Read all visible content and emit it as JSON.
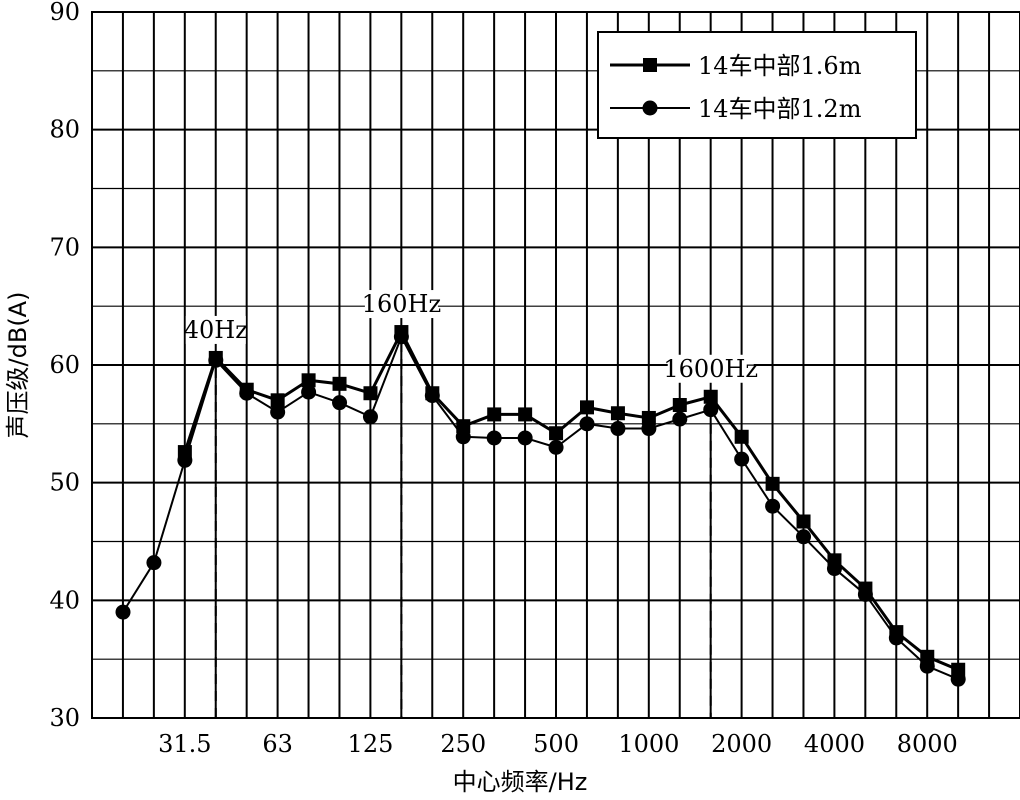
{
  "chart_data": {
    "type": "line",
    "xlabel": "中心频率/Hz",
    "ylabel": "声压级/dB(A)",
    "ylim": [
      30,
      90
    ],
    "yticks": [
      30,
      40,
      50,
      60,
      70,
      80,
      90
    ],
    "x_bands": [
      "20",
      "25",
      "31.5",
      "40",
      "50",
      "63",
      "80",
      "100",
      "125",
      "160",
      "200",
      "250",
      "315",
      "400",
      "500",
      "630",
      "800",
      "1000",
      "1250",
      "1600",
      "2000",
      "2500",
      "3150",
      "4000",
      "5000",
      "6300",
      "8000",
      "10000"
    ],
    "x_tick_labels": [
      {
        "band": "31.5",
        "label": "31.5"
      },
      {
        "band": "63",
        "label": "63"
      },
      {
        "band": "125",
        "label": "125"
      },
      {
        "band": "250",
        "label": "250"
      },
      {
        "band": "500",
        "label": "500"
      },
      {
        "band": "1000",
        "label": "1000"
      },
      {
        "band": "2000",
        "label": "2000"
      },
      {
        "band": "4000",
        "label": "4000"
      },
      {
        "band": "8000",
        "label": "8000"
      }
    ],
    "grid": true,
    "legend_position": "top-right",
    "series": [
      {
        "name": "14车中部1.6m",
        "marker": "square",
        "color": "#000000",
        "x": [
          "31.5",
          "40",
          "50",
          "63",
          "80",
          "100",
          "125",
          "160",
          "200",
          "250",
          "315",
          "400",
          "500",
          "630",
          "800",
          "1000",
          "1250",
          "1600",
          "2000",
          "2500",
          "3150",
          "4000",
          "5000",
          "6300",
          "8000",
          "10000"
        ],
        "values": [
          52.6,
          60.6,
          57.9,
          57.0,
          58.7,
          58.4,
          57.6,
          62.8,
          57.6,
          54.8,
          55.8,
          55.8,
          54.2,
          56.4,
          55.9,
          55.5,
          56.6,
          57.3,
          53.9,
          49.9,
          46.7,
          43.4,
          41.0,
          37.3,
          35.2,
          34.1
        ]
      },
      {
        "name": "14车中部1.2m",
        "marker": "circle",
        "color": "#000000",
        "x": [
          "20",
          "25",
          "31.5",
          "40",
          "50",
          "63",
          "80",
          "100",
          "125",
          "160",
          "200",
          "250",
          "315",
          "400",
          "500",
          "630",
          "800",
          "1000",
          "1250",
          "1600",
          "2000",
          "2500",
          "3150",
          "4000",
          "5000",
          "6300",
          "8000",
          "10000"
        ],
        "values": [
          39.0,
          43.2,
          51.9,
          60.4,
          57.6,
          56.0,
          57.7,
          56.8,
          55.6,
          62.4,
          57.4,
          53.9,
          53.8,
          53.8,
          53.0,
          55.0,
          54.6,
          54.6,
          55.4,
          56.2,
          52.0,
          48.0,
          45.4,
          42.7,
          40.5,
          36.8,
          34.4,
          33.3
        ]
      }
    ],
    "annotations": [
      {
        "band": "40",
        "value": 60.6,
        "text": "40Hz"
      },
      {
        "band": "160",
        "value": 62.8,
        "text": "160Hz"
      },
      {
        "band": "1600",
        "value": 57.3,
        "text": "1600Hz"
      }
    ]
  }
}
